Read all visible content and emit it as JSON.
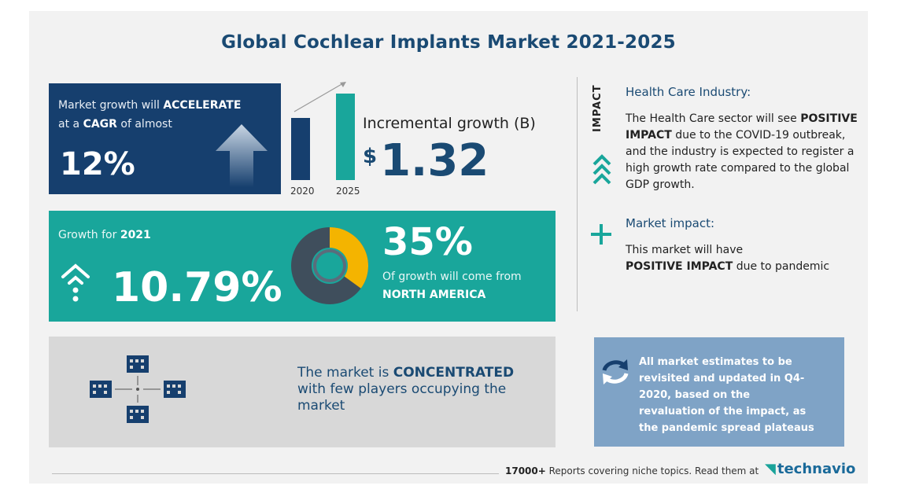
{
  "title": "Global Cochlear Implants Market 2021-2025",
  "cagr": {
    "line1_prefix": "Market growth will ",
    "line1_bold": "ACCELERATE",
    "line2_prefix": "at a ",
    "line2_bold": "CAGR",
    "line2_suffix": " of almost",
    "value": "12%"
  },
  "bars": {
    "year_start": "2020",
    "year_end": "2025",
    "incremental_label": "Incremental growth (B)",
    "currency": "$",
    "incremental_value": "1.32"
  },
  "growth": {
    "label_prefix": "Growth for ",
    "label_year": "2021",
    "value": "10.79%",
    "region_share_fraction": 0.35,
    "region_pct": "35%",
    "region_sub": "Of growth will come from",
    "region_name": "NORTH AMERICA"
  },
  "concentration": {
    "prefix": "The market is ",
    "bold": "CONCENTRATED",
    "suffix": "with few players occupying the market"
  },
  "impact": {
    "tag": "IMPACT",
    "hc_title": "Health Care Industry:",
    "hc_body_1": "The Health Care sector will see ",
    "hc_body_bold": "POSITIVE IMPACT",
    "hc_body_2": " due to the COVID-19 outbreak, and the industry is expected to register a high growth rate compared to the global GDP growth.",
    "mi_title": "Market impact:",
    "mi_body_1": "This market will have",
    "mi_body_bold": "POSITIVE IMPACT",
    "mi_body_2": " due to pandemic"
  },
  "note": {
    "text": "All market estimates to be revisited and updated in Q4-2020, based on the revaluation of the impact, as the pandemic spread plateaus"
  },
  "footer": {
    "count": "17000+",
    "text": " Reports covering niche topics. Read them at",
    "logo": "technavio"
  },
  "colors": {
    "navy": "#163f6e",
    "teal": "#19a69b",
    "gold": "#f4b400",
    "slate": "#7fa3c6",
    "grey": "#d8d8d8"
  }
}
